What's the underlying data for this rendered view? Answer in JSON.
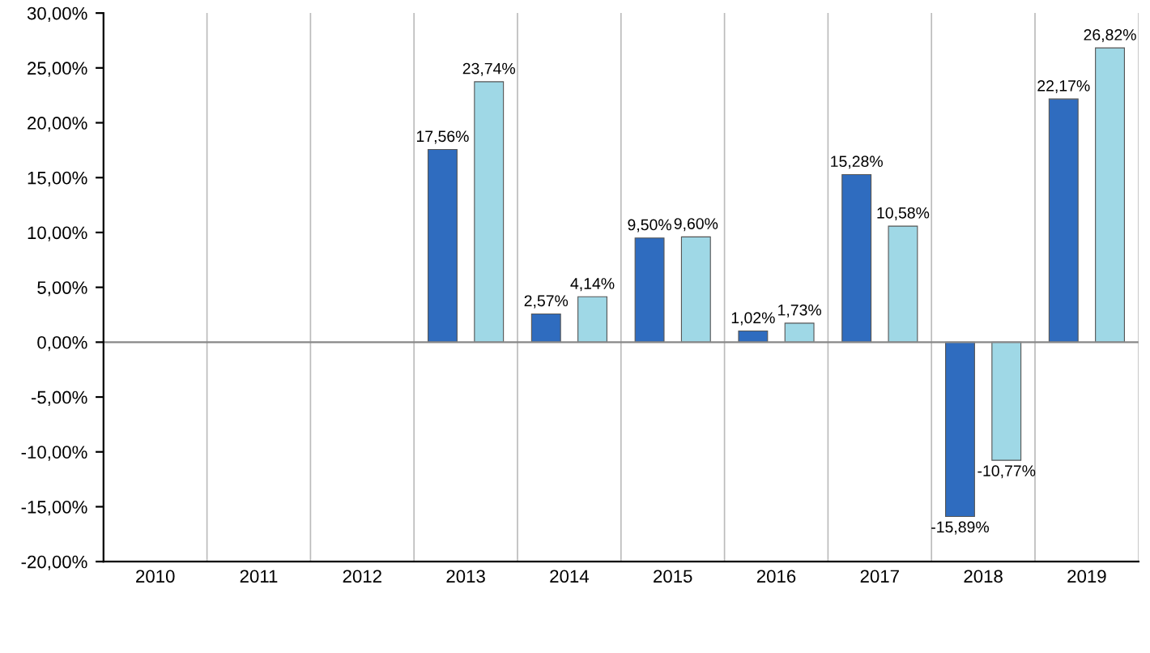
{
  "chart_data": {
    "type": "bar",
    "categories": [
      "2010",
      "2011",
      "2012",
      "2013",
      "2014",
      "2015",
      "2016",
      "2017",
      "2018",
      "2019"
    ],
    "series": [
      {
        "color": "#2f6cbf",
        "values": [
          null,
          null,
          null,
          17.56,
          2.57,
          9.5,
          1.02,
          15.28,
          -15.89,
          22.17
        ],
        "value_labels": [
          null,
          null,
          null,
          "17,56%",
          "2,57%",
          "9,50%",
          "1,02%",
          "15,28%",
          "-15,89%",
          "22,17%"
        ]
      },
      {
        "color": "#9fd8e6",
        "values": [
          null,
          null,
          null,
          23.74,
          4.14,
          9.6,
          1.73,
          10.58,
          -10.77,
          26.82
        ],
        "value_labels": [
          null,
          null,
          null,
          "23,74%",
          "4,14%",
          "9,60%",
          "1,73%",
          "10,58%",
          "-10,77%",
          "26,82%"
        ]
      }
    ],
    "ylim": [
      -20,
      30
    ],
    "yticks": [
      {
        "value": -20,
        "label": "-20,00%"
      },
      {
        "value": -15,
        "label": "-15,00%"
      },
      {
        "value": -10,
        "label": "-10,00%"
      },
      {
        "value": -5,
        "label": "-5,00%"
      },
      {
        "value": 0,
        "label": "0,00%"
      },
      {
        "value": 5,
        "label": "5,00%"
      },
      {
        "value": 10,
        "label": "10,00%"
      },
      {
        "value": 15,
        "label": "15,00%"
      },
      {
        "value": 20,
        "label": "20,00%"
      },
      {
        "value": 25,
        "label": "25,00%"
      },
      {
        "value": 30,
        "label": "30,00%"
      }
    ],
    "grid": "x"
  }
}
